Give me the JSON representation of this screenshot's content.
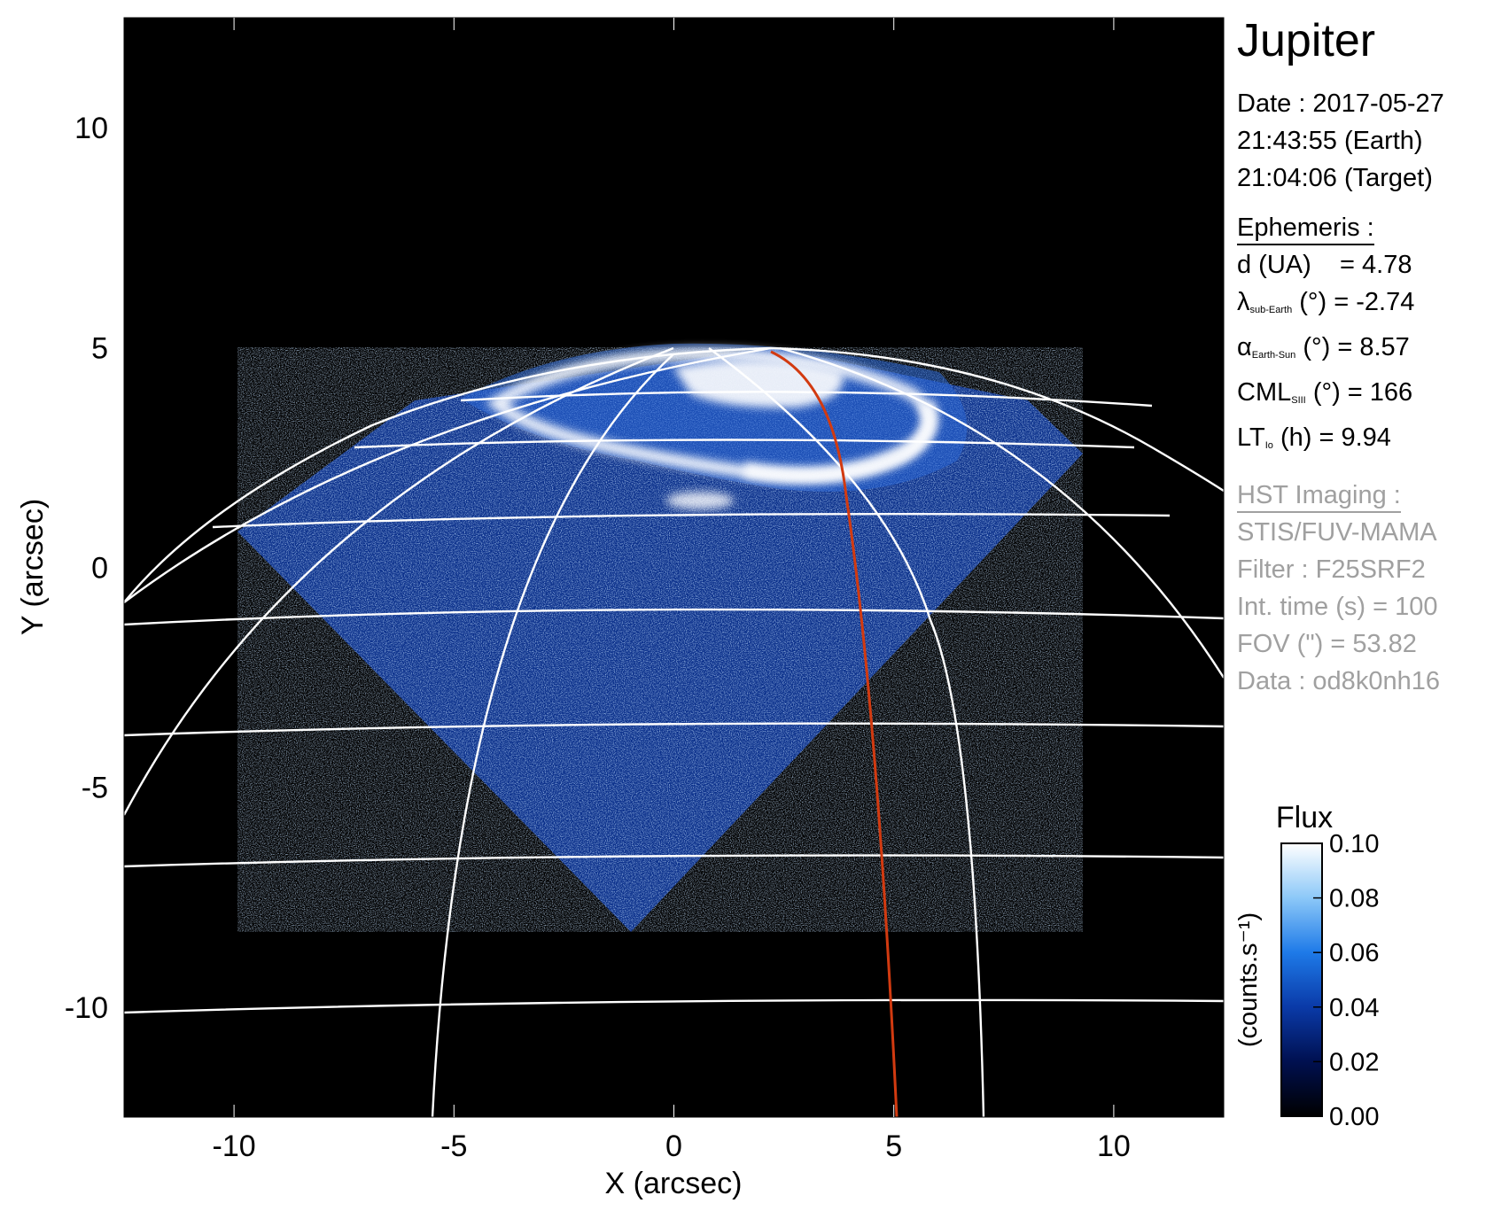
{
  "figure": {
    "x_axis": {
      "label": "X (arcsec)",
      "range": [
        -12.5,
        12.5
      ],
      "ticks": [
        {
          "v": -10,
          "label": "-10"
        },
        {
          "v": -5,
          "label": "-5"
        },
        {
          "v": 0,
          "label": "0"
        },
        {
          "v": 5,
          "label": "5"
        },
        {
          "v": 10,
          "label": "10"
        }
      ]
    },
    "y_axis": {
      "label": "Y (arcsec)",
      "range": [
        -12.5,
        12.5
      ],
      "ticks": [
        {
          "v": 10,
          "label": "10"
        },
        {
          "v": 5,
          "label": "5"
        },
        {
          "v": 0,
          "label": "0"
        },
        {
          "v": -5,
          "label": "-5"
        },
        {
          "v": -10,
          "label": "-10"
        }
      ]
    },
    "background_color": "#000000",
    "grid_color": "#ffffff",
    "meridian_color": "#d23a10",
    "aurora_color": "#1a5fd8"
  },
  "info": {
    "planet": "Jupiter",
    "date_line": "Date : 2017-05-27",
    "earth_time": "21:43:55 (Earth)",
    "target_time": "21:04:06 (Target)",
    "ephemeris_title": "Ephemeris :",
    "ephemeris": {
      "distance": {
        "label": "d (UA)",
        "value": "= 4.78"
      },
      "lambda": {
        "symbol": "λ",
        "sub": "sub-Earth",
        "unit": "(°)",
        "value": "= -2.74"
      },
      "alpha": {
        "symbol": "α",
        "sub": "Earth-Sun",
        "unit": "(°)",
        "value": "= 8.57"
      },
      "cml": {
        "symbol": "CML",
        "sub": "SIII",
        "unit": "(°)",
        "value": "= 166"
      },
      "lt": {
        "symbol": "LT",
        "sub": "Io",
        "unit": "(h)",
        "value": "= 9.94"
      }
    },
    "hst_title": "HST Imaging :",
    "instrument": "STIS/FUV-MAMA",
    "filter": "Filter : F25SRF2",
    "int_time": "Int. time (s) = 100",
    "fov": "FOV (\") = 53.82",
    "data_id": "Data : od8k0nh16",
    "text_grey": "#a0a0a0"
  },
  "colorbar": {
    "title": "Flux",
    "unit_label": "(counts.s⁻¹)",
    "range": [
      0.0,
      0.1
    ],
    "ticks": [
      {
        "v": 0.1,
        "label": "0.10"
      },
      {
        "v": 0.08,
        "label": "0.08"
      },
      {
        "v": 0.06,
        "label": "0.06"
      },
      {
        "v": 0.04,
        "label": "0.04"
      },
      {
        "v": 0.02,
        "label": "0.02"
      },
      {
        "v": 0.0,
        "label": "0.00"
      }
    ],
    "colors": [
      "#000000",
      "#001050",
      "#0a3aa8",
      "#1e7ae8",
      "#8cc8f8",
      "#ffffff"
    ]
  }
}
